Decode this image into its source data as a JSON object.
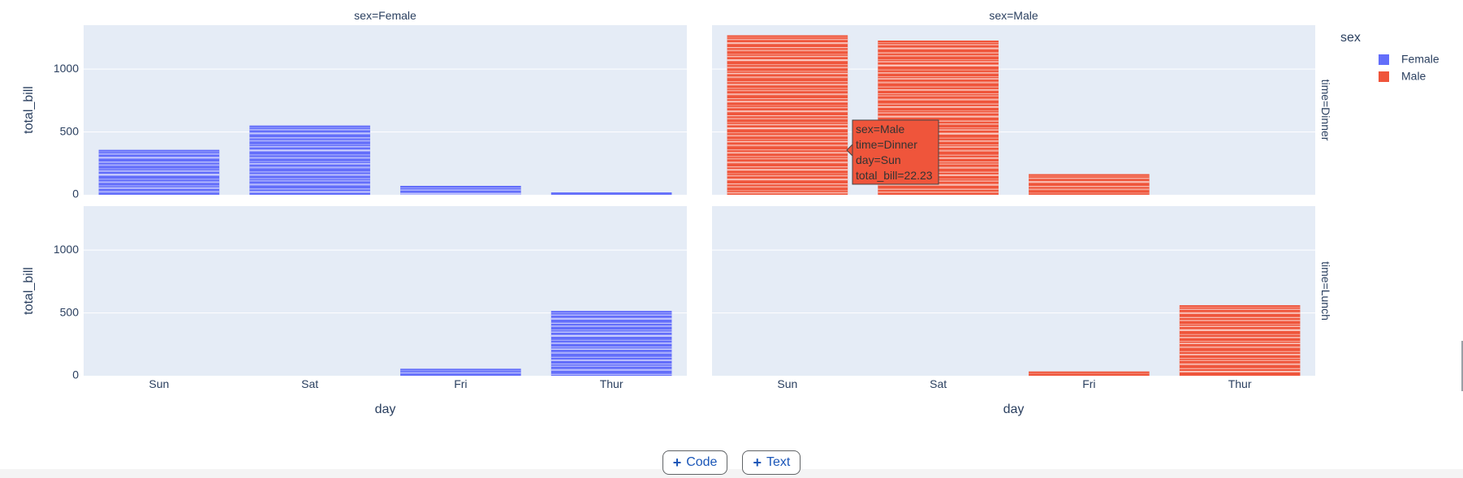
{
  "chart_data": {
    "type": "bar",
    "x_label": "day",
    "y_label": "total_bill",
    "y_range": [
      0,
      1350
    ],
    "y_ticks": [
      0,
      500,
      1000
    ],
    "categories": [
      "Sun",
      "Sat",
      "Fri",
      "Thur"
    ],
    "facet_columns": [
      "sex=Female",
      "sex=Male"
    ],
    "facet_rows": [
      "time=Dinner",
      "time=Lunch"
    ],
    "facets": [
      {
        "col": 0,
        "row": 0,
        "series": "Female",
        "values": [
          357.7,
          551.05,
          71.05,
          18.78
        ]
      },
      {
        "col": 1,
        "row": 0,
        "series": "Male",
        "values": [
          1269.46,
          1227.35,
          164.41,
          0
        ]
      },
      {
        "col": 0,
        "row": 1,
        "series": "Female",
        "values": [
          0,
          0,
          55.76,
          516.11
        ]
      },
      {
        "col": 1,
        "row": 1,
        "series": "Male",
        "values": [
          0,
          0,
          34.16,
          561.44
        ]
      }
    ],
    "legend": {
      "title": "sex",
      "position": "top-right",
      "items": [
        {
          "name": "Female",
          "color": "#636efa"
        },
        {
          "name": "Male",
          "color": "#EF553B"
        }
      ]
    },
    "tooltip": {
      "lines": [
        "sex=Male",
        "time=Dinner",
        "day=Sun",
        "total_bill=22.23"
      ],
      "color": "#EF553B"
    },
    "grid": true,
    "plot_background": "#E5ECF6"
  },
  "toolbar": {
    "code_label": "Code",
    "text_label": "Text",
    "plus_symbol": "+"
  }
}
